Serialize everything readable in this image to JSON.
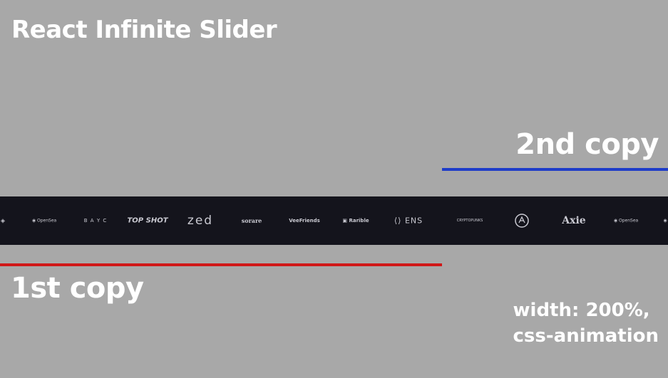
{
  "title": "React Infinite Slider",
  "labels": {
    "second_copy": "2nd copy",
    "first_copy": "1st copy",
    "note_line1": "width: 200%,",
    "note_line2": "css-animation"
  },
  "colors": {
    "background": "#a8a8a8",
    "strip": "#14141c",
    "first_copy_line": "#d01818",
    "second_copy_line": "#1e3cc8"
  },
  "logos": [
    {
      "name": "OpenSea",
      "text": "OpenSea",
      "icon": "opensea-logo-icon"
    },
    {
      "name": "BAYC",
      "text": "B A   Y C",
      "icon": "bayc-logo-icon"
    },
    {
      "name": "TopShot",
      "text": "TOP SHOT",
      "icon": "topshot-logo-icon"
    },
    {
      "name": "Zed",
      "text": "zed",
      "icon": "zed-logo-icon"
    },
    {
      "name": "Sorare",
      "text": "sorare",
      "icon": "sorare-logo-icon"
    },
    {
      "name": "VeeFriends",
      "text": "VeeFriends",
      "icon": "veefriends-logo-icon"
    },
    {
      "name": "Rarible",
      "text": "Rarible",
      "icon": "rarible-logo-icon"
    },
    {
      "name": "ENS",
      "text": "ENS",
      "icon": "ens-logo-icon"
    },
    {
      "name": "CryptoPunks",
      "text": "CRYPTOPUNKS",
      "icon": "cryptopunks-logo-icon"
    },
    {
      "name": "Emblem",
      "text": "",
      "icon": "round-emblem-icon"
    },
    {
      "name": "Axie",
      "text": "Axie",
      "icon": "axie-logo-icon"
    },
    {
      "name": "OpenSea",
      "text": "OpenSea",
      "icon": "opensea-logo-icon"
    }
  ]
}
